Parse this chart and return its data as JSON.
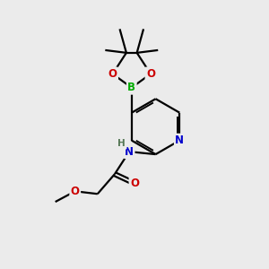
{
  "bg_color": "#ebebeb",
  "atom_colors": {
    "C": "#000000",
    "N": "#0000cc",
    "O": "#cc0000",
    "B": "#00aa00",
    "H": "#557755"
  },
  "bond_lw": 1.6,
  "figsize": [
    3.0,
    3.0
  ],
  "dpi": 100,
  "xlim": [
    0,
    10
  ],
  "ylim": [
    0,
    10
  ]
}
